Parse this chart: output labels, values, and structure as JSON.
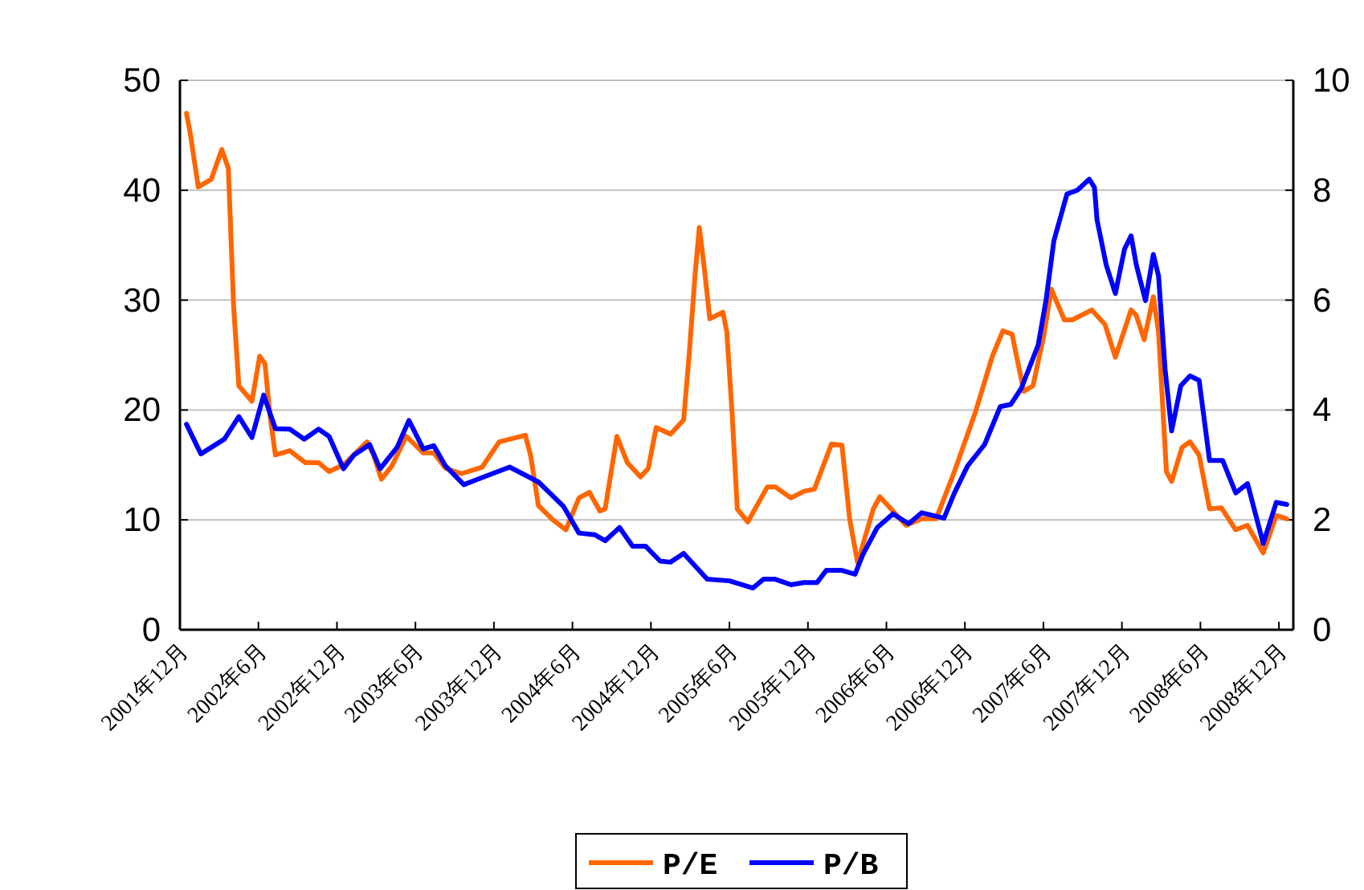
{
  "chart_data": {
    "type": "line",
    "ylim": [
      0,
      50
    ],
    "yticks": [
      0,
      10,
      20,
      30,
      40,
      50
    ],
    "y2lim": [
      0,
      10
    ],
    "y2ticks": [
      0,
      2,
      4,
      6,
      8,
      10
    ],
    "xlim": [
      "2001-12",
      "2009-01-04"
    ],
    "xticks": [
      {
        "value": "2001-12",
        "label": "2001年12月"
      },
      {
        "value": "2002-06",
        "label": "2002年6月"
      },
      {
        "value": "2002-12",
        "label": "2002年12月"
      },
      {
        "value": "2003-06",
        "label": "2003年6月"
      },
      {
        "value": "2003-12",
        "label": "2003年12月"
      },
      {
        "value": "2004-06",
        "label": "2004年6月"
      },
      {
        "value": "2004-12",
        "label": "2004年12月"
      },
      {
        "value": "2005-06",
        "label": "2005年6月"
      },
      {
        "value": "2005-12",
        "label": "2005年12月"
      },
      {
        "value": "2006-06",
        "label": "2006年6月"
      },
      {
        "value": "2006-12",
        "label": "2006年12月"
      },
      {
        "value": "2007-06",
        "label": "2007年6月"
      },
      {
        "value": "2007-12",
        "label": "2007年12月"
      },
      {
        "value": "2008-06",
        "label": "2008年6月"
      },
      {
        "value": "2008-12",
        "label": "2008年12月"
      }
    ],
    "grid": "y",
    "legend": "bottom",
    "marker": "none",
    "line_style": "solid",
    "series": [
      {
        "name": "P/E",
        "color": "#ff6600",
        "x": [
          "2001-12-16",
          "2001-12-25",
          "2002-01-04",
          "2002-01-13",
          "2002-02-13",
          "2002-03-07",
          "2002-03-22",
          "2002-04-04",
          "2002-04-16",
          "2002-05-16",
          "2002-06-04",
          "2002-06-16",
          "2002-06-28",
          "2002-07-10",
          "2002-08-13",
          "2002-09-19",
          "2002-10-19",
          "2002-11-13",
          "2002-12-16",
          "2003-02-10",
          "2003-02-25",
          "2003-03-13",
          "2003-04-07",
          "2003-05-10",
          "2003-06-19",
          "2003-07-13",
          "2003-08-10",
          "2003-09-16",
          "2003-11-04",
          "2003-12-13",
          "2004-02-13",
          "2004-02-25",
          "2004-03-13",
          "2004-04-16",
          "2004-05-16",
          "2004-06-16",
          "2004-07-10",
          "2004-08-04",
          "2004-08-16",
          "2004-09-13",
          "2004-10-07",
          "2004-11-07",
          "2004-11-25",
          "2004-12-13",
          "2005-01-16",
          "2005-02-16",
          "2005-02-28",
          "2005-03-13",
          "2005-03-22",
          "2005-04-04",
          "2005-04-16",
          "2005-05-16",
          "2005-05-25",
          "2005-06-07",
          "2005-06-19",
          "2005-07-13",
          "2005-08-28",
          "2005-09-16",
          "2005-10-22",
          "2005-11-22",
          "2005-12-16",
          "2006-01-25",
          "2006-02-19",
          "2006-03-07",
          "2006-03-25",
          "2006-05-01",
          "2006-05-16",
          "2006-07-16",
          "2006-08-22",
          "2006-09-25",
          "2006-11-07",
          "2006-12-01",
          "2006-12-25",
          "2007-02-04",
          "2007-02-28",
          "2007-03-19",
          "2007-04-16",
          "2007-05-07",
          "2007-06-01",
          "2007-06-19",
          "2007-07-19",
          "2007-08-07",
          "2007-09-22",
          "2007-10-22",
          "2007-11-16",
          "2007-12-22",
          "2008-01-04",
          "2008-01-22",
          "2008-02-13",
          "2008-02-25",
          "2008-03-13",
          "2008-03-25",
          "2008-04-19",
          "2008-05-07",
          "2008-05-28",
          "2008-06-22",
          "2008-07-19",
          "2008-08-22",
          "2008-09-19",
          "2008-10-25",
          "2008-11-25",
          "2008-12-19"
        ],
        "values": [
          47.0,
          45.1,
          42.7,
          40.3,
          41.0,
          43.7,
          42.0,
          29.5,
          22.2,
          20.8,
          24.9,
          24.2,
          19.3,
          15.9,
          16.3,
          15.2,
          15.2,
          14.4,
          15.0,
          17.1,
          15.9,
          13.7,
          14.9,
          17.6,
          16.1,
          16.1,
          14.7,
          14.2,
          14.8,
          17.1,
          17.7,
          15.9,
          11.3,
          10.0,
          9.1,
          12.0,
          12.5,
          10.8,
          11.0,
          17.6,
          15.2,
          13.9,
          14.7,
          18.4,
          17.8,
          19.1,
          24.7,
          32.7,
          36.6,
          32.7,
          28.3,
          28.9,
          27.1,
          19.8,
          11.0,
          9.8,
          13.0,
          13.0,
          12.0,
          12.6,
          12.8,
          16.9,
          16.8,
          10.0,
          6.1,
          11.0,
          12.1,
          9.5,
          10.1,
          10.1,
          14.4,
          17.1,
          19.8,
          24.9,
          27.2,
          26.9,
          21.7,
          22.2,
          26.6,
          31.0,
          28.2,
          28.2,
          29.1,
          27.8,
          24.8,
          29.1,
          28.6,
          26.4,
          30.3,
          27.1,
          14.4,
          13.5,
          16.6,
          17.1,
          15.9,
          11.0,
          11.1,
          9.1,
          9.5,
          7.0,
          10.4,
          10.1
        ]
      },
      {
        "name": "P/B",
        "color": "#0000ff",
        "axis": "y2",
        "x": [
          "2001-12-16",
          "2002-01-19",
          "2002-03-13",
          "2002-04-16",
          "2002-05-16",
          "2002-06-13",
          "2002-07-10",
          "2002-08-13",
          "2002-09-16",
          "2002-10-19",
          "2002-11-13",
          "2002-12-16",
          "2003-01-10",
          "2003-02-16",
          "2003-03-10",
          "2003-04-19",
          "2003-05-16",
          "2003-06-19",
          "2003-07-13",
          "2003-08-10",
          "2003-09-22",
          "2003-11-04",
          "2004-01-07",
          "2004-03-13",
          "2004-05-10",
          "2004-06-16",
          "2004-07-22",
          "2004-08-16",
          "2004-09-19",
          "2004-10-19",
          "2004-11-19",
          "2004-12-22",
          "2005-01-16",
          "2005-02-16",
          "2005-04-10",
          "2005-06-01",
          "2005-07-25",
          "2005-08-19",
          "2005-09-16",
          "2005-10-22",
          "2005-11-22",
          "2005-12-22",
          "2006-01-13",
          "2006-02-19",
          "2006-03-19",
          "2006-04-07",
          "2006-05-10",
          "2006-06-16",
          "2006-07-22",
          "2006-08-22",
          "2006-10-13",
          "2006-11-07",
          "2006-12-07",
          "2007-01-16",
          "2007-02-22",
          "2007-03-16",
          "2007-04-10",
          "2007-05-19",
          "2007-06-07",
          "2007-06-25",
          "2007-07-25",
          "2007-08-19",
          "2007-09-16",
          "2007-09-28",
          "2007-10-04",
          "2007-10-25",
          "2007-11-16",
          "2007-12-07",
          "2007-12-22",
          "2008-01-04",
          "2008-01-25",
          "2008-02-13",
          "2008-02-25",
          "2008-03-10",
          "2008-03-25",
          "2008-04-16",
          "2008-05-07",
          "2008-05-28",
          "2008-06-22",
          "2008-07-22",
          "2008-08-22",
          "2008-09-19",
          "2008-10-25",
          "2008-11-25",
          "2008-12-19"
        ],
        "values": [
          3.74,
          3.2,
          3.47,
          3.88,
          3.5,
          4.27,
          3.66,
          3.65,
          3.47,
          3.65,
          3.52,
          2.93,
          3.18,
          3.37,
          2.93,
          3.32,
          3.81,
          3.29,
          3.35,
          2.98,
          2.64,
          2.77,
          2.96,
          2.69,
          2.25,
          1.76,
          1.73,
          1.62,
          1.86,
          1.52,
          1.52,
          1.25,
          1.23,
          1.39,
          0.92,
          0.89,
          0.76,
          0.92,
          0.92,
          0.82,
          0.86,
          0.86,
          1.08,
          1.08,
          1.01,
          1.37,
          1.86,
          2.11,
          1.93,
          2.13,
          2.03,
          2.49,
          2.98,
          3.37,
          4.06,
          4.1,
          4.39,
          5.18,
          6.0,
          7.08,
          7.93,
          8.0,
          8.2,
          8.05,
          7.46,
          6.64,
          6.12,
          6.93,
          7.17,
          6.64,
          5.99,
          6.83,
          6.44,
          4.74,
          3.62,
          4.44,
          4.62,
          4.54,
          3.08,
          3.08,
          2.49,
          2.66,
          1.57,
          2.32,
          2.28
        ]
      }
    ]
  }
}
